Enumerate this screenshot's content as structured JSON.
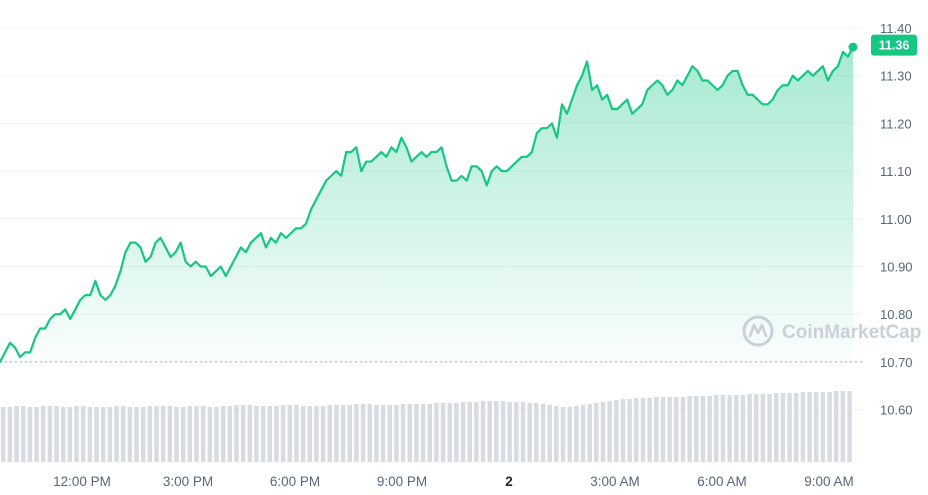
{
  "chart_data": {
    "type": "area",
    "title": "",
    "xlabel": "",
    "ylabel": "",
    "ylim": [
      10.69,
      11.42
    ],
    "y_ticks": [
      "11.40",
      "11.30",
      "11.20",
      "11.10",
      "11.00",
      "10.90",
      "10.80",
      "10.70",
      "10.60"
    ],
    "x_ticks": [
      {
        "label": "12:00 PM",
        "bold": false
      },
      {
        "label": "3:00 PM",
        "bold": false
      },
      {
        "label": "6:00 PM",
        "bold": false
      },
      {
        "label": "9:00 PM",
        "bold": false
      },
      {
        "label": "2",
        "bold": true
      },
      {
        "label": "3:00 AM",
        "bold": false
      },
      {
        "label": "6:00 AM",
        "bold": false
      },
      {
        "label": "9:00 AM",
        "bold": false
      }
    ],
    "reference_line": 10.7,
    "current_price": "11.36",
    "series": [
      {
        "values": [
          10.7,
          10.72,
          10.74,
          10.73,
          10.71,
          10.72,
          10.72,
          10.75,
          10.77,
          10.77,
          10.79,
          10.8,
          10.8,
          10.81,
          10.79,
          10.81,
          10.83,
          10.84,
          10.84,
          10.87,
          10.84,
          10.83,
          10.84,
          10.86,
          10.89,
          10.93,
          10.95,
          10.95,
          10.94,
          10.91,
          10.92,
          10.95,
          10.96,
          10.94,
          10.92,
          10.93,
          10.95,
          10.91,
          10.9,
          10.91,
          10.9,
          10.9,
          10.88,
          10.89,
          10.9,
          10.88,
          10.9,
          10.92,
          10.94,
          10.93,
          10.95,
          10.96,
          10.97,
          10.94,
          10.96,
          10.95,
          10.97,
          10.96,
          10.97,
          10.98,
          10.98,
          10.99,
          11.02,
          11.04,
          11.06,
          11.08,
          11.09,
          11.1,
          11.09,
          11.14,
          11.14,
          11.15,
          11.1,
          11.12,
          11.12,
          11.13,
          11.14,
          11.13,
          11.15,
          11.14,
          11.17,
          11.15,
          11.12,
          11.13,
          11.14,
          11.13,
          11.14,
          11.14,
          11.15,
          11.11,
          11.08,
          11.08,
          11.09,
          11.08,
          11.11,
          11.11,
          11.1,
          11.07,
          11.1,
          11.11,
          11.1,
          11.1,
          11.11,
          11.12,
          11.13,
          11.13,
          11.14,
          11.18,
          11.19,
          11.19,
          11.2,
          11.17,
          11.24,
          11.22,
          11.25,
          11.28,
          11.3,
          11.33,
          11.27,
          11.28,
          11.25,
          11.26,
          11.23,
          11.23,
          11.24,
          11.25,
          11.22,
          11.23,
          11.24,
          11.27,
          11.28,
          11.29,
          11.28,
          11.26,
          11.27,
          11.29,
          11.28,
          11.3,
          11.32,
          11.31,
          11.29,
          11.29,
          11.28,
          11.27,
          11.28,
          11.3,
          11.31,
          11.31,
          11.28,
          11.26,
          11.26,
          11.25,
          11.24,
          11.24,
          11.25,
          11.27,
          11.28,
          11.28,
          11.3,
          11.29,
          11.3,
          11.31,
          11.3,
          11.31,
          11.32,
          11.29,
          11.31,
          11.32,
          11.35,
          11.34,
          11.36
        ]
      }
    ],
    "volume": [
      0.55,
      0.55,
      0.56,
      0.56,
      0.55,
      0.55,
      0.56,
      0.56,
      0.56,
      0.55,
      0.55,
      0.56,
      0.56,
      0.55,
      0.55,
      0.55,
      0.55,
      0.56,
      0.56,
      0.55,
      0.55,
      0.55,
      0.56,
      0.56,
      0.56,
      0.56,
      0.55,
      0.55,
      0.56,
      0.56,
      0.56,
      0.55,
      0.55,
      0.56,
      0.56,
      0.57,
      0.57,
      0.57,
      0.56,
      0.56,
      0.56,
      0.56,
      0.57,
      0.57,
      0.57,
      0.56,
      0.56,
      0.56,
      0.56,
      0.57,
      0.57,
      0.57,
      0.57,
      0.58,
      0.58,
      0.58,
      0.57,
      0.57,
      0.57,
      0.57,
      0.58,
      0.58,
      0.58,
      0.58,
      0.58,
      0.59,
      0.59,
      0.59,
      0.59,
      0.6,
      0.6,
      0.6,
      0.61,
      0.61,
      0.61,
      0.61,
      0.6,
      0.6,
      0.6,
      0.59,
      0.59,
      0.58,
      0.57,
      0.56,
      0.55,
      0.55,
      0.56,
      0.57,
      0.58,
      0.59,
      0.6,
      0.61,
      0.62,
      0.63,
      0.63,
      0.64,
      0.64,
      0.64,
      0.65,
      0.65,
      0.65,
      0.65,
      0.65,
      0.66,
      0.66,
      0.66,
      0.66,
      0.67,
      0.67,
      0.67,
      0.67,
      0.67,
      0.68,
      0.68,
      0.68,
      0.68,
      0.69,
      0.69,
      0.69,
      0.69,
      0.7,
      0.7,
      0.7,
      0.7,
      0.7,
      0.71,
      0.71,
      0.71
    ]
  },
  "colors": {
    "line": "#16c784",
    "badge": "#16c784",
    "grid": "#eff2f5",
    "volume": "#d7dbe2",
    "watermark": "#c9d0da",
    "axis_text": "#58667e"
  },
  "watermark": {
    "text": "CoinMarketCap",
    "icon": "coinmarketcap-logo-icon"
  }
}
